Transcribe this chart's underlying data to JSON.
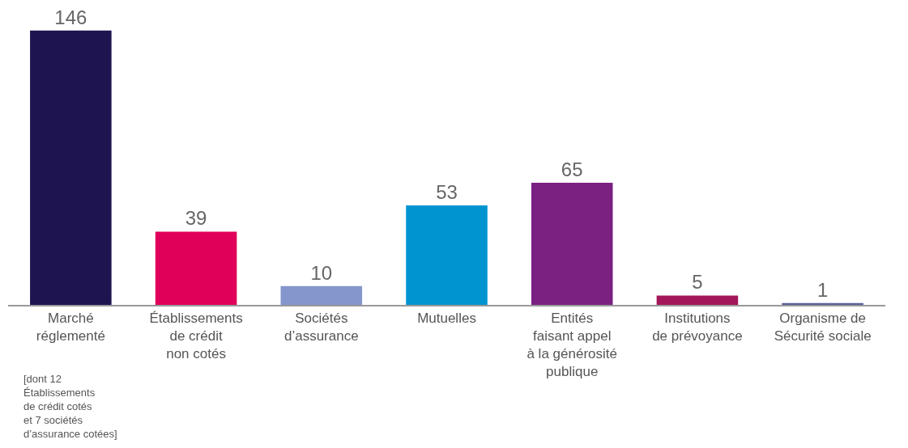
{
  "chart_data": {
    "type": "bar",
    "categories": [
      "Marché\nréglementé",
      "Établissements\nde crédit\nnon cotés",
      "Sociétés\nd’assurance",
      "Mutuelles",
      "Entités\nfaisant appel\nà la générosité\npublique",
      "Institutions\nde prévoyance",
      "Organisme de\nSécurité sociale"
    ],
    "values": [
      146,
      39,
      10,
      53,
      65,
      5,
      1
    ],
    "colors": [
      "#1e1450",
      "#e0005a",
      "#8596cc",
      "#0094d0",
      "#7a2182",
      "#a3175a",
      "#5c5e9c"
    ],
    "data_labels": true,
    "annotations": [
      "[dont 12\nÉtablissements\nde crédit cotés\net 7 sociétés\nd’assurance cotées]"
    ]
  }
}
